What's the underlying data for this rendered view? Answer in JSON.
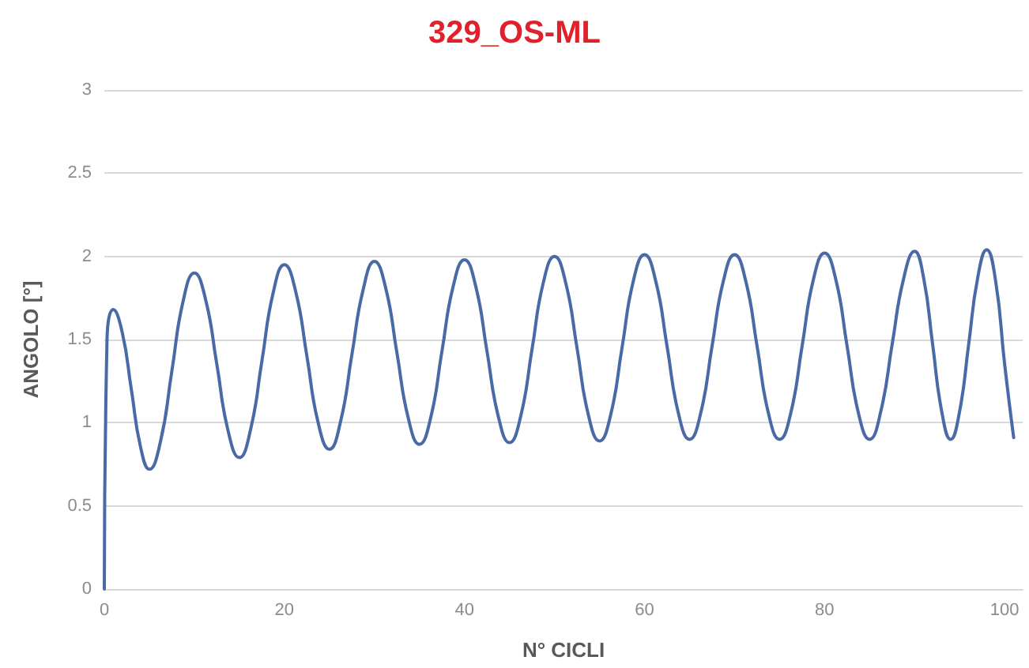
{
  "chart_data": {
    "type": "line",
    "title": "329_OS-ML",
    "xlabel": "N° CICLI",
    "ylabel": "ANGOLO [°]",
    "xlim": [
      0,
      102
    ],
    "xticks": [
      0,
      20,
      40,
      60,
      80,
      100
    ],
    "ylim": [
      0,
      3
    ],
    "yticks": [
      0,
      0.5,
      1,
      1.5,
      2,
      2.5,
      3
    ],
    "grid": "y",
    "marker": "none",
    "line_style": "solid",
    "series": [
      {
        "color": "#4a6aa5",
        "x": [
          0,
          0.3,
          1,
          2,
          3,
          4,
          5,
          6.25,
          7.5,
          8.75,
          10,
          11.25,
          12.5,
          13.75,
          15,
          16.25,
          17.5,
          18.75,
          20,
          21.25,
          22.5,
          23.75,
          25,
          26.25,
          27.5,
          28.75,
          30,
          31.25,
          32.5,
          33.75,
          35,
          36.25,
          37.5,
          38.75,
          40,
          41.25,
          42.5,
          43.75,
          45,
          46.25,
          47.5,
          48.75,
          50,
          51.25,
          52.5,
          53.75,
          55,
          56.25,
          57.5,
          58.75,
          60,
          61.25,
          62.5,
          63.75,
          65,
          66.25,
          67.5,
          68.75,
          70,
          71.25,
          72.5,
          73.75,
          75,
          76.25,
          77.5,
          78.75,
          80,
          81.25,
          82.5,
          83.75,
          85,
          86.25,
          87.5,
          88.75,
          90,
          91,
          92,
          93,
          94,
          95,
          96,
          97,
          98,
          99,
          100,
          101
        ],
        "values": [
          0,
          1.5,
          1.68,
          1.54,
          1.2,
          0.86,
          0.72,
          0.89,
          1.31,
          1.73,
          1.9,
          1.74,
          1.35,
          0.95,
          0.79,
          0.96,
          1.37,
          1.78,
          1.95,
          1.79,
          1.4,
          1.0,
          0.84,
          1.01,
          1.41,
          1.8,
          1.97,
          1.81,
          1.42,
          1.03,
          0.87,
          1.03,
          1.43,
          1.82,
          1.98,
          1.82,
          1.43,
          1.04,
          0.88,
          1.04,
          1.44,
          1.84,
          2.0,
          1.84,
          1.45,
          1.05,
          0.89,
          1.05,
          1.45,
          1.85,
          2.01,
          1.85,
          1.46,
          1.06,
          0.9,
          1.06,
          1.46,
          1.85,
          2.01,
          1.85,
          1.46,
          1.06,
          0.9,
          1.06,
          1.46,
          1.86,
          2.02,
          1.86,
          1.46,
          1.06,
          0.9,
          1.07,
          1.47,
          1.86,
          2.03,
          1.87,
          1.47,
          1.07,
          0.9,
          1.07,
          1.47,
          1.87,
          2.04,
          1.85,
          1.35,
          0.91
        ]
      }
    ]
  }
}
